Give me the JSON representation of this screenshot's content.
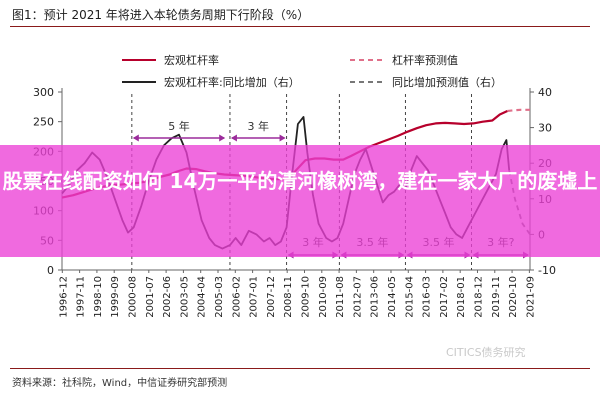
{
  "figure": {
    "title": "图1：预计 2021 年将进入本轮债务周期下行阶段（%）",
    "source": "资料来源：社科院，Wind，中信证券研究部预测",
    "watermark": "CITICS债务研究"
  },
  "headline": "股票在线配资如何 14万一平的清河橡树湾，建在一家大厂的废墟上",
  "colors": {
    "leverage_line": "#b7002c",
    "leverage_forecast": "#e0708a",
    "growth_line": "#222222",
    "growth_forecast": "#777777",
    "annotation": "#9b2c9b",
    "banner": "#ec40d6",
    "rule": "#8a1a1a"
  },
  "chart_data": {
    "type": "line",
    "x_tick_labels": [
      "1996-12",
      "1997-11",
      "1998-10",
      "1999-09",
      "2000-08",
      "2001-07",
      "2002-06",
      "2003-05",
      "2004-04",
      "2005-03",
      "2006-02",
      "2007-01",
      "2007-12",
      "2008-11",
      "2009-10",
      "2010-09",
      "2011-08",
      "2012-07",
      "2013-06",
      "2014-05",
      "2015-04",
      "2016-03",
      "2017-02",
      "2018-01",
      "2018-12",
      "2019-11",
      "2020-10",
      "2021-09"
    ],
    "left_axis": {
      "min": 0,
      "max": 300,
      "ticks": [
        "0",
        "50",
        "100",
        "150",
        "200",
        "250",
        "300"
      ]
    },
    "right_axis": {
      "min": -10,
      "max": 40,
      "ticks": [
        "-10",
        "0",
        "10",
        "20",
        "30",
        "40"
      ]
    },
    "legend": [
      {
        "label": "宏观杠杆率",
        "style": "solid",
        "series": "leverage"
      },
      {
        "label": "杠杆率预测值",
        "style": "dashed",
        "series": "leverage_forecast"
      },
      {
        "label": "宏观杠杆率:同比增加（右）",
        "style": "solid",
        "series": "growth"
      },
      {
        "label": "同比增加预测值（右）",
        "style": "dashed",
        "series": "growth_forecast"
      }
    ],
    "series": [
      {
        "key": "leverage",
        "axis": "left",
        "points": [
          [
            1996.9,
            122
          ],
          [
            1997.5,
            126
          ],
          [
            1998.0,
            131
          ],
          [
            1998.5,
            136
          ],
          [
            1999.0,
            140
          ],
          [
            1999.5,
            143
          ],
          [
            2000.0,
            144
          ],
          [
            2000.6,
            146
          ],
          [
            2001.0,
            147
          ],
          [
            2001.6,
            151
          ],
          [
            2002.0,
            156
          ],
          [
            2002.6,
            161
          ],
          [
            2003.0,
            166
          ],
          [
            2003.5,
            171
          ],
          [
            2004.0,
            170
          ],
          [
            2004.5,
            166
          ],
          [
            2005.0,
            163
          ],
          [
            2005.5,
            161
          ],
          [
            2006.0,
            160
          ],
          [
            2006.5,
            159
          ],
          [
            2007.0,
            157
          ],
          [
            2007.5,
            155
          ],
          [
            2008.0,
            153
          ],
          [
            2008.5,
            153
          ],
          [
            2008.9,
            154
          ],
          [
            2009.3,
            168
          ],
          [
            2009.8,
            185
          ],
          [
            2010.3,
            188
          ],
          [
            2010.8,
            188
          ],
          [
            2011.3,
            186
          ],
          [
            2011.8,
            186
          ],
          [
            2012.2,
            192
          ],
          [
            2012.7,
            200
          ],
          [
            2013.2,
            208
          ],
          [
            2013.7,
            214
          ],
          [
            2014.2,
            220
          ],
          [
            2014.7,
            226
          ],
          [
            2015.2,
            233
          ],
          [
            2015.7,
            239
          ],
          [
            2016.2,
            244
          ],
          [
            2016.7,
            247
          ],
          [
            2017.2,
            248
          ],
          [
            2017.7,
            247
          ],
          [
            2018.2,
            246
          ],
          [
            2018.7,
            247
          ],
          [
            2019.2,
            250
          ],
          [
            2019.7,
            252
          ],
          [
            2020.1,
            262
          ],
          [
            2020.5,
            268
          ]
        ]
      },
      {
        "key": "leverage_forecast",
        "axis": "left",
        "points": [
          [
            2020.5,
            268
          ],
          [
            2020.8,
            269
          ],
          [
            2021.2,
            270
          ],
          [
            2021.7,
            270
          ]
        ]
      },
      {
        "key": "growth",
        "axis": "right",
        "points": [
          [
            1996.9,
            11.5
          ],
          [
            1997.3,
            14
          ],
          [
            1997.7,
            18
          ],
          [
            1998.1,
            20
          ],
          [
            1998.5,
            23
          ],
          [
            1998.9,
            21
          ],
          [
            1999.3,
            16
          ],
          [
            1999.7,
            10
          ],
          [
            2000.1,
            4
          ],
          [
            2000.4,
            0.5
          ],
          [
            2000.7,
            2
          ],
          [
            2001.1,
            8
          ],
          [
            2001.5,
            15
          ],
          [
            2001.9,
            21
          ],
          [
            2002.3,
            25
          ],
          [
            2002.7,
            27
          ],
          [
            2003.1,
            28
          ],
          [
            2003.5,
            23
          ],
          [
            2003.9,
            13
          ],
          [
            2004.3,
            4
          ],
          [
            2004.7,
            -1
          ],
          [
            2005.0,
            -3
          ],
          [
            2005.4,
            -4
          ],
          [
            2005.8,
            -3
          ],
          [
            2006.1,
            -1
          ],
          [
            2006.4,
            -3
          ],
          [
            2006.8,
            1
          ],
          [
            2007.2,
            0
          ],
          [
            2007.6,
            -2
          ],
          [
            2007.9,
            -1
          ],
          [
            2008.2,
            -3
          ],
          [
            2008.5,
            -2
          ],
          [
            2008.8,
            2
          ],
          [
            2009.1,
            17
          ],
          [
            2009.4,
            31
          ],
          [
            2009.7,
            33
          ],
          [
            2009.9,
            23
          ],
          [
            2010.2,
            11
          ],
          [
            2010.5,
            3
          ],
          [
            2010.9,
            -1
          ],
          [
            2011.2,
            -2
          ],
          [
            2011.5,
            -1
          ],
          [
            2011.8,
            3
          ],
          [
            2012.1,
            10
          ],
          [
            2012.4,
            17
          ],
          [
            2012.7,
            21
          ],
          [
            2013.0,
            24
          ],
          [
            2013.3,
            19
          ],
          [
            2013.6,
            14
          ],
          [
            2013.9,
            9
          ],
          [
            2014.2,
            11
          ],
          [
            2014.5,
            12
          ],
          [
            2014.8,
            14
          ],
          [
            2015.1,
            13
          ],
          [
            2015.4,
            18
          ],
          [
            2015.7,
            22
          ],
          [
            2016.0,
            20
          ],
          [
            2016.3,
            18
          ],
          [
            2016.6,
            14
          ],
          [
            2016.9,
            10
          ],
          [
            2017.2,
            6
          ],
          [
            2017.5,
            2
          ],
          [
            2017.8,
            0
          ],
          [
            2018.1,
            -1
          ],
          [
            2018.4,
            2
          ],
          [
            2018.8,
            6
          ],
          [
            2019.2,
            10
          ],
          [
            2019.6,
            14
          ],
          [
            2019.9,
            17
          ],
          [
            2020.2,
            24
          ],
          [
            2020.45,
            26.5
          ],
          [
            2020.6,
            18
          ]
        ]
      },
      {
        "key": "growth_forecast",
        "axis": "right",
        "points": [
          [
            2020.6,
            18
          ],
          [
            2020.9,
            10
          ],
          [
            2021.3,
            3
          ],
          [
            2021.7,
            0
          ]
        ]
      }
    ],
    "annotations": [
      {
        "type": "span",
        "label": "5 年",
        "x_start": 2000.6,
        "x_end": 2005.6,
        "placement": "upper"
      },
      {
        "type": "span",
        "label": "3 年",
        "x_start": 2005.8,
        "x_end": 2008.8,
        "placement": "upper"
      },
      {
        "type": "span",
        "label": "3 年",
        "x_start": 2008.8,
        "x_end": 2011.6,
        "placement": "lower"
      },
      {
        "type": "span",
        "label": "3.5 年",
        "x_start": 2011.6,
        "x_end": 2015.1,
        "placement": "lower"
      },
      {
        "type": "span",
        "label": "3.5 年",
        "x_start": 2015.1,
        "x_end": 2018.6,
        "placement": "lower"
      },
      {
        "type": "span",
        "label": "3 年?",
        "x_start": 2018.6,
        "x_end": 2021.7,
        "placement": "lower"
      }
    ],
    "dividers_x": [
      2000.6,
      2005.8,
      2008.8,
      2011.6,
      2015.1,
      2018.6
    ]
  }
}
